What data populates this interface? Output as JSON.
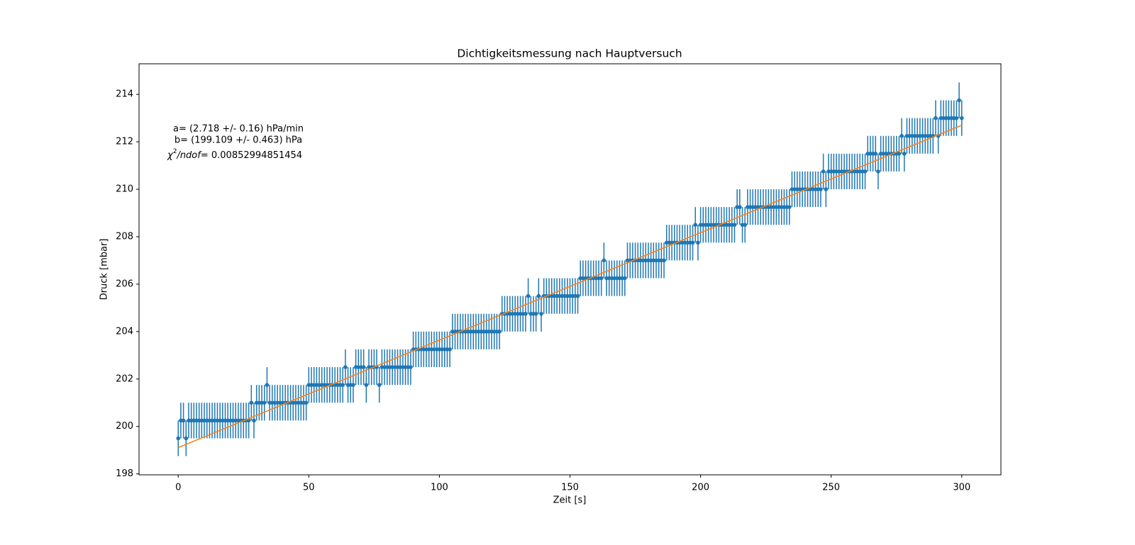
{
  "chart_data": {
    "type": "errorbar",
    "title": "Dichtigkeitsmessung nach Hauptversuch",
    "xlabel": "Zeit [s]",
    "ylabel": "Druck [mbar]",
    "xlim": [
      -15,
      315
    ],
    "ylim": [
      197.96,
      215.29
    ],
    "xticks": [
      0,
      50,
      100,
      150,
      200,
      250,
      300
    ],
    "yticks": [
      198,
      200,
      202,
      204,
      206,
      208,
      210,
      212,
      214
    ],
    "annotations": [
      "a= (2.718 +/- 0.16) hPa/min",
      "b= (199.109 +/- 0.463) hPa"
    ],
    "chi2_annotation": {
      "symbol": "χ",
      "power": "2",
      "denominator": "/ndof",
      "text": "= 0.00852994851454"
    },
    "fit": {
      "color": "#ff7f0e",
      "x": [
        0,
        300
      ],
      "values": [
        199.109,
        212.7
      ]
    },
    "series": [
      {
        "color": "#1f77b4",
        "yerr": 0.75,
        "x": [
          0,
          1,
          2,
          3,
          4,
          5,
          6,
          7,
          8,
          9,
          10,
          11,
          12,
          13,
          14,
          15,
          16,
          17,
          18,
          19,
          20,
          21,
          22,
          23,
          24,
          25,
          26,
          27,
          28,
          29,
          30,
          31,
          32,
          33,
          34,
          35,
          36,
          37,
          38,
          39,
          40,
          41,
          42,
          43,
          44,
          45,
          46,
          47,
          48,
          49,
          50,
          51,
          52,
          53,
          54,
          55,
          56,
          57,
          58,
          59,
          60,
          61,
          62,
          63,
          64,
          65,
          66,
          67,
          68,
          69,
          70,
          71,
          72,
          73,
          74,
          75,
          76,
          77,
          78,
          79,
          80,
          81,
          82,
          83,
          84,
          85,
          86,
          87,
          88,
          89,
          90,
          91,
          92,
          93,
          94,
          95,
          96,
          97,
          98,
          99,
          100,
          101,
          102,
          103,
          104,
          105,
          106,
          107,
          108,
          109,
          110,
          111,
          112,
          113,
          114,
          115,
          116,
          117,
          118,
          119,
          120,
          121,
          122,
          123,
          124,
          125,
          126,
          127,
          128,
          129,
          130,
          131,
          132,
          133,
          134,
          135,
          136,
          137,
          138,
          139,
          140,
          141,
          142,
          143,
          144,
          145,
          146,
          147,
          148,
          149,
          150,
          151,
          152,
          153,
          154,
          155,
          156,
          157,
          158,
          159,
          160,
          161,
          162,
          163,
          164,
          165,
          166,
          167,
          168,
          169,
          170,
          171,
          172,
          173,
          174,
          175,
          176,
          177,
          178,
          179,
          180,
          181,
          182,
          183,
          184,
          185,
          186,
          187,
          188,
          189,
          190,
          191,
          192,
          193,
          194,
          195,
          196,
          197,
          198,
          199,
          200,
          201,
          202,
          203,
          204,
          205,
          206,
          207,
          208,
          209,
          210,
          211,
          212,
          213,
          214,
          215,
          216,
          217,
          218,
          219,
          220,
          221,
          222,
          223,
          224,
          225,
          226,
          227,
          228,
          229,
          230,
          231,
          232,
          233,
          234,
          235,
          236,
          237,
          238,
          239,
          240,
          241,
          242,
          243,
          244,
          245,
          246,
          247,
          248,
          249,
          250,
          251,
          252,
          253,
          254,
          255,
          256,
          257,
          258,
          259,
          260,
          261,
          262,
          263,
          264,
          265,
          266,
          267,
          268,
          269,
          270,
          271,
          272,
          273,
          274,
          275,
          276,
          277,
          278,
          279,
          280,
          281,
          282,
          283,
          284,
          285,
          286,
          287,
          288,
          289,
          290,
          291,
          292,
          293,
          294,
          295,
          296,
          297,
          298,
          299,
          300
        ],
        "values": [
          199.5,
          200.25,
          200.25,
          199.5,
          200.25,
          200.25,
          200.25,
          200.25,
          200.25,
          200.25,
          200.25,
          200.25,
          200.25,
          200.25,
          200.25,
          200.25,
          200.25,
          200.25,
          200.25,
          200.25,
          200.25,
          200.25,
          200.25,
          200.25,
          200.25,
          200.25,
          200.25,
          200.25,
          201,
          200.25,
          201,
          201,
          201,
          201,
          201.75,
          201,
          201,
          201,
          201,
          201,
          201,
          201,
          201,
          201,
          201,
          201,
          201,
          201,
          201,
          201,
          201.75,
          201.75,
          201.75,
          201.75,
          201.75,
          201.75,
          201.75,
          201.75,
          201.75,
          201.75,
          201.75,
          201.75,
          201.75,
          201.75,
          202.5,
          201.75,
          201.75,
          201.75,
          202.5,
          202.5,
          202.5,
          202.5,
          201.75,
          202.5,
          202.5,
          202.5,
          202.5,
          201.75,
          202.5,
          202.5,
          202.5,
          202.5,
          202.5,
          202.5,
          202.5,
          202.5,
          202.5,
          202.5,
          202.5,
          202.5,
          203.25,
          203.25,
          203.25,
          203.25,
          203.25,
          203.25,
          203.25,
          203.25,
          203.25,
          203.25,
          203.25,
          203.25,
          203.25,
          203.25,
          203.25,
          204,
          204,
          204,
          204,
          204,
          204,
          204,
          204,
          204,
          204,
          204,
          204,
          204,
          204,
          204,
          204,
          204,
          204,
          204,
          204.75,
          204.75,
          204.75,
          204.75,
          204.75,
          204.75,
          204.75,
          204.75,
          204.75,
          204.75,
          205.5,
          204.75,
          204.75,
          204.75,
          205.5,
          204.75,
          205.5,
          205.5,
          205.5,
          205.5,
          205.5,
          205.5,
          205.5,
          205.5,
          205.5,
          205.5,
          205.5,
          205.5,
          205.5,
          205.5,
          206.25,
          206.25,
          206.25,
          206.25,
          206.25,
          206.25,
          206.25,
          206.25,
          206.25,
          207,
          206.25,
          206.25,
          206.25,
          206.25,
          206.25,
          206.25,
          206.25,
          206.25,
          207,
          207,
          207,
          207,
          207,
          207,
          207,
          207,
          207,
          207,
          207,
          207,
          207,
          207,
          207,
          207.75,
          207.75,
          207.75,
          207.75,
          207.75,
          207.75,
          207.75,
          207.75,
          207.75,
          207.75,
          207.75,
          208.5,
          207.75,
          208.5,
          208.5,
          208.5,
          208.5,
          208.5,
          208.5,
          208.5,
          208.5,
          208.5,
          208.5,
          208.5,
          208.5,
          208.5,
          208.5,
          209.25,
          209.25,
          208.5,
          208.5,
          209.25,
          209.25,
          209.25,
          209.25,
          209.25,
          209.25,
          209.25,
          209.25,
          209.25,
          209.25,
          209.25,
          209.25,
          209.25,
          209.25,
          209.25,
          209.25,
          209.25,
          210,
          210,
          210,
          210,
          210,
          210,
          210,
          210,
          210,
          210,
          210,
          210,
          210.75,
          210,
          210.75,
          210.75,
          210.75,
          210.75,
          210.75,
          210.75,
          210.75,
          210.75,
          210.75,
          210.75,
          210.75,
          210.75,
          210.75,
          210.75,
          210.75,
          211.5,
          211.5,
          211.5,
          211.5,
          210.75,
          211.5,
          211.5,
          211.5,
          211.5,
          211.5,
          211.5,
          211.5,
          211.5,
          212.25,
          211.5,
          212.25,
          212.25,
          212.25,
          212.25,
          212.25,
          212.25,
          212.25,
          212.25,
          212.25,
          212.25,
          212.25,
          213,
          212.25,
          213,
          213,
          213,
          213,
          213,
          213,
          213,
          213.75,
          213
        ]
      }
    ]
  }
}
